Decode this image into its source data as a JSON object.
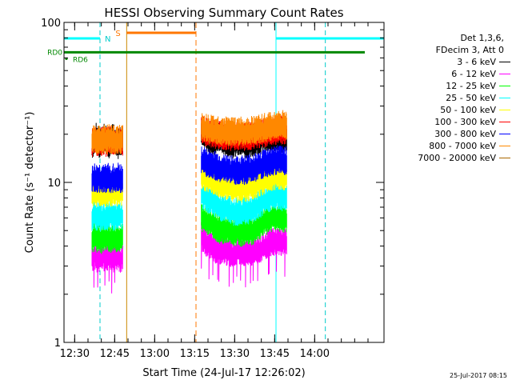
{
  "chart_data": {
    "type": "line",
    "title": "HESSI Observing Summary Count Rates",
    "xlabel": "Start Time (24-Jul-17 12:26:02)",
    "ylabel": "Count Rate (s⁻¹ detector⁻¹)",
    "ylog": true,
    "ylim": [
      1,
      100
    ],
    "xlim_minutes": [
      26,
      146
    ],
    "x_ticks": [
      {
        "label": "12:30",
        "min": 30
      },
      {
        "label": "12:45",
        "min": 45
      },
      {
        "label": "13:00",
        "min": 60
      },
      {
        "label": "13:15",
        "min": 75
      },
      {
        "label": "13:30",
        "min": 90
      },
      {
        "label": "13:45",
        "min": 105
      },
      {
        "label": "14:00",
        "min": 120
      }
    ],
    "y_ticks": [
      {
        "label": "1",
        "value": 1
      },
      {
        "label": "10",
        "value": 10
      },
      {
        "label": "100",
        "value": 100
      }
    ],
    "legend_header": [
      "Det 1,3,6,",
      "FDecim 3, Att 0"
    ],
    "series": [
      {
        "name": "3 - 6 keV",
        "color": "#000000",
        "seg1": [
          17,
          18,
          19,
          17,
          18,
          19,
          18,
          17,
          18,
          19,
          18,
          17,
          18,
          18
        ],
        "seg2": [
          20,
          19,
          18,
          18,
          19,
          18,
          17,
          17,
          18,
          18,
          17,
          17,
          18,
          18,
          19,
          18,
          19,
          19,
          18,
          19
        ]
      },
      {
        "name": "6 - 12 keV",
        "color": "#ff00ff",
        "seg1": [
          3.3,
          3.5,
          3.3,
          3.3,
          3.5,
          3.4,
          3.3,
          3.5,
          3.4,
          3.3,
          3.5,
          3.4,
          3.3,
          3.4
        ],
        "seg2": [
          4.5,
          4.2,
          4.0,
          3.8,
          3.7,
          3.8,
          3.6,
          3.6,
          3.7,
          3.6,
          3.7,
          3.6,
          3.7,
          3.8,
          4.0,
          4.1,
          4.2,
          4.3,
          4.2,
          4.2
        ]
      },
      {
        "name": "12 - 25 keV",
        "color": "#00ff00",
        "seg1": [
          4.4,
          4.5,
          4.4,
          4.5,
          4.3,
          4.5,
          4.4,
          4.5,
          4.4,
          4.5,
          4.4,
          4.5,
          4.4,
          4.5
        ],
        "seg2": [
          6.0,
          5.8,
          5.6,
          5.3,
          5.0,
          5.0,
          5.0,
          4.8,
          4.9,
          4.8,
          5.0,
          4.9,
          5.0,
          5.3,
          5.6,
          5.8,
          6.0,
          6.0,
          5.9,
          5.9
        ]
      },
      {
        "name": "25 - 50 keV",
        "color": "#00ffff",
        "seg1": [
          6.0,
          6.2,
          6.0,
          6.1,
          5.9,
          6.0,
          6.1,
          6.0,
          6.2,
          6.0,
          6.1,
          6.0,
          6.2,
          6.1
        ],
        "seg2": [
          8.2,
          8.0,
          7.7,
          7.4,
          7.0,
          6.8,
          6.7,
          6.5,
          6.5,
          6.5,
          6.6,
          6.6,
          6.8,
          7.2,
          7.6,
          7.9,
          8.1,
          8.2,
          8.0,
          8.0
        ]
      },
      {
        "name": "50 - 100 keV",
        "color": "#ffff00",
        "seg1": [
          8.5,
          8.7,
          8.5,
          8.6,
          8.4,
          8.6,
          8.5,
          8.6,
          8.5,
          8.7,
          8.6,
          8.5,
          8.6,
          8.6
        ],
        "seg2": [
          11.0,
          10.6,
          10.4,
          10.0,
          9.7,
          9.5,
          9.3,
          9.2,
          9.1,
          9.1,
          9.2,
          9.3,
          9.5,
          9.9,
          10.2,
          10.6,
          10.8,
          11.0,
          10.8,
          10.8
        ]
      },
      {
        "name": "100 - 300 keV",
        "color": "#ff0000",
        "seg1": [
          17.5,
          18,
          17.5,
          18,
          17.8,
          18,
          17.6,
          18,
          17.8,
          18,
          17.6,
          18,
          17.8,
          17.9
        ],
        "seg2": [
          21,
          20.5,
          20,
          19.8,
          19.5,
          19.5,
          19.2,
          19,
          19,
          19,
          19.2,
          19.3,
          19.5,
          19.8,
          20,
          20.5,
          20.8,
          21,
          20.8,
          21
        ]
      },
      {
        "name": "300 - 800 keV",
        "color": "#0000ff",
        "seg1": [
          10.3,
          10.5,
          10.3,
          10.5,
          10.4,
          10.6,
          10.4,
          10.5,
          10.3,
          10.5,
          10.4,
          10.6,
          10.4,
          10.5
        ],
        "seg2": [
          13.5,
          13.2,
          12.8,
          12.5,
          12.2,
          12.0,
          11.9,
          11.7,
          11.7,
          11.7,
          11.8,
          12.0,
          12.2,
          12.5,
          12.9,
          13.2,
          13.4,
          13.6,
          13.5,
          13.5
        ]
      },
      {
        "name": "800 - 7000 keV",
        "color": "#ff8800",
        "seg1": [
          18,
          18.5,
          18,
          18.5,
          18.2,
          18.5,
          18,
          18.4,
          18.2,
          18.5,
          18,
          18.4,
          18.2,
          18.3
        ],
        "seg2": [
          22,
          21.5,
          21,
          21,
          20.5,
          20.5,
          20.5,
          20.5,
          20.5,
          20.5,
          20.5,
          20.8,
          21,
          21.2,
          21.5,
          22,
          22,
          22.5,
          22.5,
          22.5
        ]
      },
      {
        "name": "7000 - 20000 keV",
        "color": "#aa6600",
        "seg1": [],
        "seg2": []
      }
    ],
    "seg1_range_min": [
      36.5,
      48.0
    ],
    "seg2_range_min": [
      77.5,
      109.5
    ],
    "night_line_min": [
      26,
      39.5
    ],
    "night_line_min_2": [
      105.5,
      146
    ],
    "saa_line_min": [
      49.5,
      75.5
    ],
    "saa_label": "S",
    "night_label": "N",
    "flag_line_value": 65,
    "flag_labels": [
      "RD0",
      "RD6"
    ],
    "vlines_cyan_solid_min": [
      26,
      105.5
    ],
    "vlines_cyan_dashed_min": [
      39.5,
      124
    ],
    "vline_orange_solid_min": 49.5,
    "vline_orange_dashed_min": 75.5,
    "legend_position": "right"
  },
  "timestamp": "25-Jul-2017 08:15"
}
